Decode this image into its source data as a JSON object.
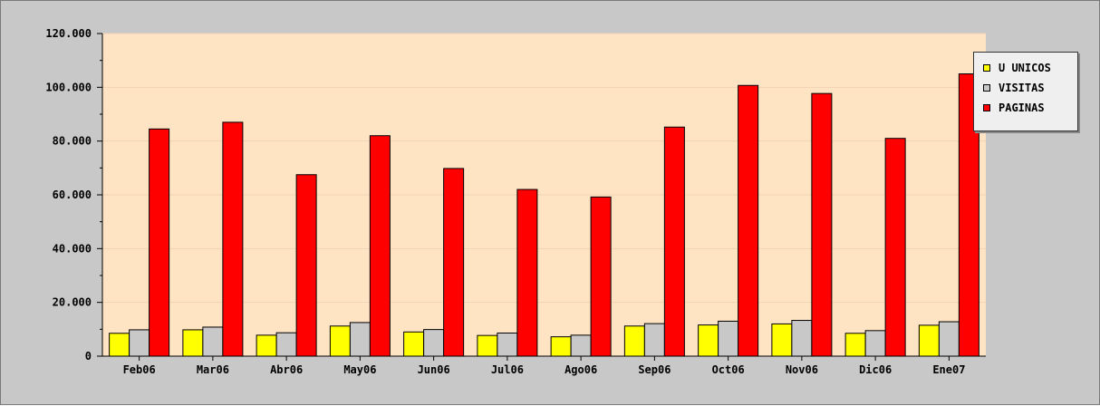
{
  "chart_data": {
    "type": "bar",
    "title": "",
    "xlabel": "",
    "ylabel": "",
    "ylim": [
      0,
      120000
    ],
    "yticks": [
      "0",
      "20.000",
      "40.000",
      "60.000",
      "80.000",
      "100.000",
      "120.000"
    ],
    "grid": true,
    "legend_position": "top-right",
    "categories": [
      "Feb06",
      "Mar06",
      "Abr06",
      "May06",
      "Jun06",
      "Jul06",
      "Ago06",
      "Sep06",
      "Oct06",
      "Nov06",
      "Dic06",
      "Ene07"
    ],
    "series": [
      {
        "name": "U UNICOS",
        "color": "#ffff00",
        "values": [
          8500,
          9800,
          7800,
          11200,
          9000,
          7700,
          7200,
          11200,
          11600,
          12000,
          8500,
          11500
        ]
      },
      {
        "name": "VISITAS",
        "color": "#c8c8c8",
        "values": [
          9800,
          10800,
          8700,
          12500,
          9900,
          8600,
          7800,
          12100,
          13000,
          13300,
          9500,
          12800
        ]
      },
      {
        "name": "PAGINAS",
        "color": "#ff0000",
        "values": [
          84500,
          87000,
          67500,
          82000,
          69800,
          62000,
          59200,
          85200,
          100700,
          97700,
          81000,
          105000
        ]
      }
    ],
    "colors": {
      "plot_background": "#ffe4c4",
      "frame_background": "#c8c8c8",
      "gridline": "#f2d2b4"
    }
  }
}
